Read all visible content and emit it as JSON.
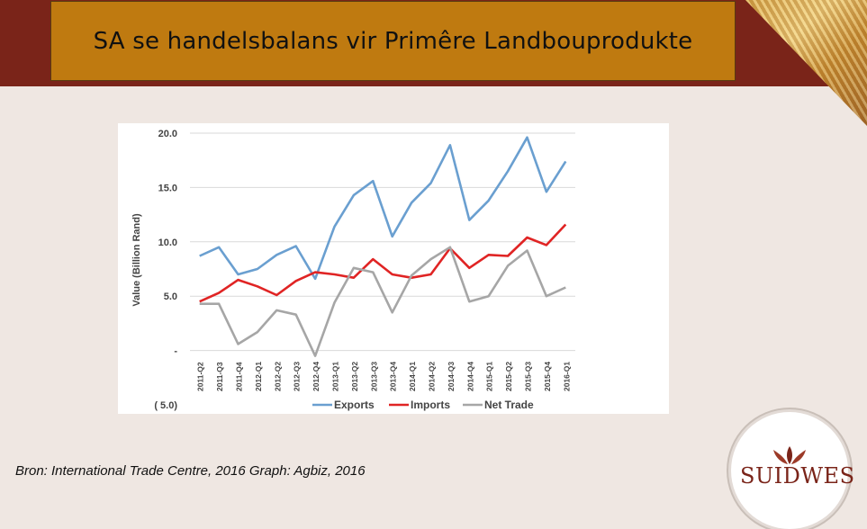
{
  "slide": {
    "title": "SA se handelsbalans vir Primêre Landbouprodukte",
    "source": "Bron: International Trade Centre, 2016 Graph: Agbiz, 2016",
    "logo_text": "SUIDWES",
    "colors": {
      "band": "#7a2419",
      "title_box": "#bf7a10",
      "background": "#efe7e2"
    }
  },
  "chart_data": {
    "type": "line",
    "title": "",
    "xlabel": "",
    "ylabel": "Value (Billion Rand)",
    "ylim": [
      -5,
      20
    ],
    "yticks": [
      {
        "value": 20,
        "label": "20.0"
      },
      {
        "value": 15,
        "label": "15.0"
      },
      {
        "value": 10,
        "label": "10.0"
      },
      {
        "value": 5,
        "label": "5.0"
      },
      {
        "value": 0,
        "label": "-"
      },
      {
        "value": -5,
        "label": "( 5.0)"
      }
    ],
    "grid": true,
    "legend_position": "bottom",
    "categories": [
      "2011-Q2",
      "2011-Q3",
      "2011-Q4",
      "2012-Q1",
      "2012-Q2",
      "2012-Q3",
      "2012-Q4",
      "2013-Q1",
      "2013-Q2",
      "2013-Q3",
      "2013-Q4",
      "2014-Q1",
      "2014-Q2",
      "2014-Q3",
      "2014-Q4",
      "2015-Q1",
      "2015-Q2",
      "2015-Q3",
      "2015-Q4",
      "2016-Q1"
    ],
    "series": [
      {
        "name": "Exports",
        "color": "#6a9fd0",
        "values": [
          8.7,
          9.5,
          7.0,
          7.5,
          8.8,
          9.6,
          6.6,
          11.4,
          14.3,
          15.6,
          10.5,
          13.6,
          15.4,
          18.9,
          12.0,
          13.8,
          16.5,
          19.6,
          14.6,
          17.4
        ]
      },
      {
        "name": "Imports",
        "color": "#e02424",
        "values": [
          4.5,
          5.3,
          6.5,
          5.9,
          5.1,
          6.4,
          7.2,
          7.0,
          6.7,
          8.4,
          7.0,
          6.7,
          7.0,
          9.4,
          7.6,
          8.8,
          8.7,
          10.4,
          9.7,
          11.6
        ]
      },
      {
        "name": "Net Trade",
        "color": "#a6a6a6",
        "values": [
          4.3,
          4.3,
          0.6,
          1.7,
          3.7,
          3.3,
          -0.5,
          4.4,
          7.6,
          7.2,
          3.5,
          6.9,
          8.4,
          9.5,
          4.5,
          5.0,
          7.8,
          9.2,
          5.0,
          5.8
        ]
      }
    ]
  }
}
